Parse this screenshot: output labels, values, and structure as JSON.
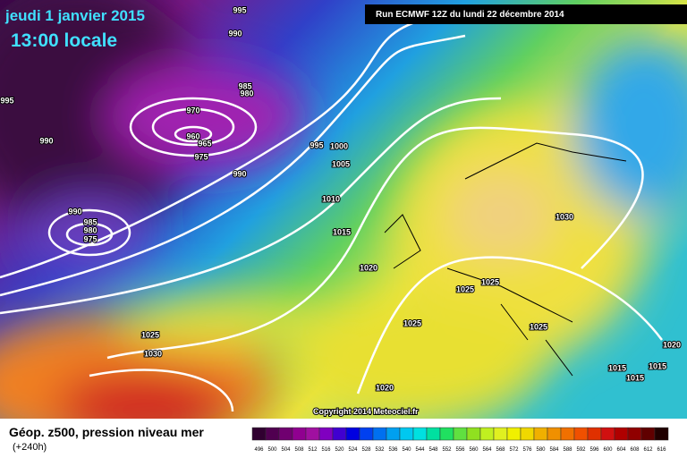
{
  "header": {
    "date": "jeudi 1 janvier 2015",
    "time": "13:00 locale",
    "run": "Run ECMWF 12Z du lundi 22 décembre 2014"
  },
  "map": {
    "isobar_labels": [
      "995",
      "990",
      "995",
      "985",
      "980",
      "970",
      "960",
      "965",
      "975",
      "990",
      "990",
      "995",
      "1000",
      "1005",
      "1010",
      "990",
      "985",
      "980",
      "975",
      "1015",
      "1020",
      "1030",
      "1025",
      "1025",
      "1025",
      "1025",
      "1025",
      "1030",
      "1020",
      "1015",
      "1015",
      "1015",
      "1020"
    ],
    "copyright": "Copyright 2014 Meteociel.fr"
  },
  "footer": {
    "title": "Géop. z500, pression niveau mer",
    "lead": "(+240h)",
    "scale": [
      "496",
      "500",
      "504",
      "508",
      "512",
      "516",
      "520",
      "524",
      "528",
      "532",
      "536",
      "540",
      "544",
      "548",
      "552",
      "556",
      "560",
      "564",
      "568",
      "572",
      "576",
      "580",
      "584",
      "588",
      "592",
      "596",
      "600",
      "604",
      "608",
      "612",
      "616"
    ]
  }
}
